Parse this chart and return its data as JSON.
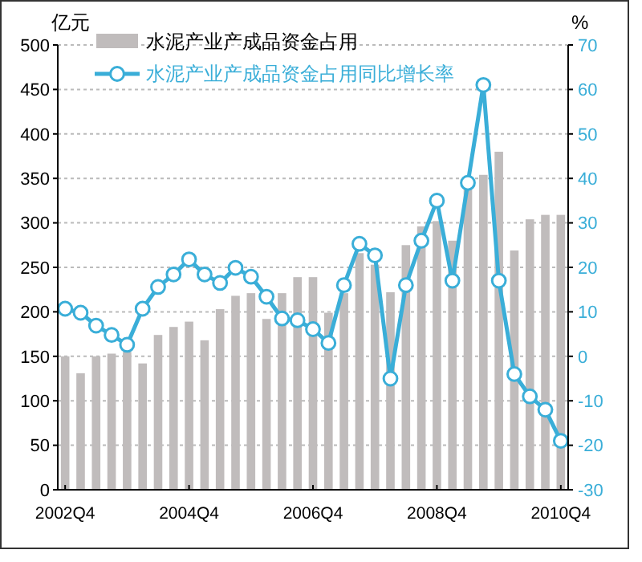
{
  "chart_data": {
    "type": "bar",
    "ylabel": "亿元",
    "y2label": "%",
    "categories": [
      "2002Q4",
      null,
      null,
      null,
      null,
      null,
      null,
      null,
      "2004Q4",
      null,
      null,
      null,
      null,
      null,
      null,
      null,
      "2006Q4",
      null,
      null,
      null,
      null,
      null,
      null,
      null,
      "2008Q4",
      null,
      null,
      null,
      null,
      null,
      null,
      null,
      "2010Q4"
    ],
    "series": [
      {
        "name": "水泥产业产成品资金占用",
        "color": "#c0bcbc",
        "values": [
          150,
          131,
          150,
          153,
          155,
          142,
          174,
          183,
          189,
          168,
          203,
          218,
          221,
          192,
          221,
          239,
          239,
          199,
          221,
          266,
          253,
          222,
          275,
          296,
          302,
          280,
          338,
          354,
          380,
          269,
          304,
          309,
          309
        ]
      },
      {
        "name": "水泥产业产成品资金占用同比增长率",
        "type": "line",
        "axis": "y2",
        "color": "#3aaed8",
        "marker": "circle",
        "values": [
          10.7,
          9.8,
          6.9,
          4.8,
          2.6,
          10.7,
          15.6,
          18.4,
          21.8,
          18.4,
          16.5,
          19.9,
          17.9,
          13.4,
          8.5,
          8.1,
          6.1,
          3,
          16,
          25.3,
          22.7,
          -5,
          16,
          26,
          35,
          17,
          39,
          61,
          17,
          -4,
          -9,
          -12,
          -19
        ]
      }
    ],
    "ylim": [
      0,
      500
    ],
    "yticks": [
      0,
      50,
      100,
      150,
      200,
      250,
      300,
      350,
      400,
      450,
      500
    ],
    "y2lim": [
      -30,
      70
    ],
    "y2ticks": [
      -30,
      -20,
      -10,
      0,
      10,
      20,
      30,
      40,
      50,
      60,
      70
    ],
    "grid": "y",
    "legend": "top"
  }
}
